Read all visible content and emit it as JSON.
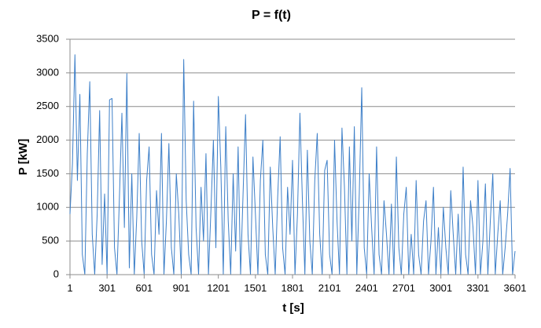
{
  "chart_data": {
    "type": "line",
    "title": "P = f(t)",
    "x_label": "t [s]",
    "y_label": "P [kW]",
    "xlim": [
      1,
      3601
    ],
    "xticks": [
      1,
      301,
      601,
      901,
      1201,
      1501,
      1801,
      2101,
      2401,
      2701,
      3001,
      3301,
      3601
    ],
    "ylim": [
      0,
      3500
    ],
    "yticks": [
      0,
      500,
      1000,
      1500,
      2000,
      2500,
      3000,
      3500
    ],
    "grid": true,
    "x": [
      1,
      21,
      41,
      61,
      81,
      101,
      121,
      141,
      161,
      181,
      201,
      221,
      241,
      261,
      281,
      301,
      321,
      341,
      361,
      381,
      401,
      421,
      441,
      461,
      481,
      501,
      521,
      541,
      561,
      581,
      601,
      621,
      641,
      661,
      681,
      701,
      721,
      741,
      761,
      781,
      801,
      821,
      841,
      861,
      881,
      901,
      921,
      941,
      961,
      981,
      1001,
      1021,
      1041,
      1061,
      1081,
      1101,
      1121,
      1141,
      1161,
      1181,
      1201,
      1221,
      1241,
      1261,
      1281,
      1301,
      1321,
      1341,
      1361,
      1381,
      1401,
      1421,
      1441,
      1461,
      1481,
      1501,
      1521,
      1541,
      1561,
      1581,
      1601,
      1621,
      1641,
      1661,
      1681,
      1701,
      1721,
      1741,
      1761,
      1781,
      1801,
      1821,
      1841,
      1861,
      1881,
      1901,
      1921,
      1941,
      1961,
      1981,
      2001,
      2021,
      2041,
      2061,
      2081,
      2101,
      2121,
      2141,
      2161,
      2181,
      2201,
      2221,
      2241,
      2261,
      2281,
      2301,
      2321,
      2341,
      2361,
      2381,
      2401,
      2421,
      2441,
      2461,
      2481,
      2501,
      2521,
      2541,
      2561,
      2581,
      2601,
      2621,
      2641,
      2661,
      2681,
      2701,
      2721,
      2741,
      2761,
      2781,
      2801,
      2821,
      2841,
      2861,
      2881,
      2901,
      2921,
      2941,
      2961,
      2981,
      3001,
      3021,
      3041,
      3061,
      3081,
      3101,
      3121,
      3141,
      3161,
      3181,
      3201,
      3221,
      3241,
      3261,
      3281,
      3301,
      3321,
      3341,
      3361,
      3381,
      3401,
      3421,
      3441,
      3461,
      3481,
      3501,
      3521,
      3541,
      3561,
      3581,
      3601
    ],
    "series": [
      {
        "color": "#3d7fc8",
        "values": [
          900,
          1650,
          3270,
          1400,
          2680,
          300,
          0,
          1800,
          2870,
          600,
          0,
          900,
          2440,
          150,
          1200,
          0,
          2600,
          2620,
          400,
          0,
          1150,
          2400,
          700,
          2990,
          100,
          1500,
          0,
          850,
          2100,
          500,
          0,
          1400,
          1900,
          300,
          0,
          1250,
          600,
          2100,
          0,
          800,
          1950,
          400,
          0,
          1500,
          900,
          0,
          3200,
          1100,
          300,
          0,
          2580,
          700,
          0,
          1300,
          500,
          1800,
          0,
          950,
          2000,
          400,
          2650,
          1600,
          0,
          2200,
          800,
          0,
          1500,
          350,
          1900,
          0,
          1200,
          2380,
          600,
          0,
          1750,
          900,
          0,
          1400,
          2000,
          300,
          0,
          1600,
          700,
          0,
          1150,
          2050,
          400,
          0,
          1300,
          600,
          1700,
          0,
          900,
          2400,
          1100,
          0,
          1850,
          500,
          0,
          1400,
          2100,
          600,
          0,
          1550,
          1700,
          300,
          0,
          2000,
          800,
          0,
          2180,
          1300,
          0,
          1900,
          500,
          2200,
          0,
          1200,
          2780,
          400,
          0,
          1500,
          700,
          0,
          1900,
          300,
          0,
          1100,
          600,
          0,
          1050,
          0,
          1750,
          400,
          0,
          900,
          1300,
          0,
          600,
          0,
          1400,
          300,
          0,
          800,
          1100,
          0,
          500,
          1300,
          0,
          700,
          0,
          1000,
          400,
          0,
          1250,
          600,
          0,
          900,
          0,
          1600,
          300,
          0,
          1100,
          700,
          0,
          1400,
          0,
          500,
          1350,
          0,
          800,
          1500,
          0,
          600,
          1100,
          0,
          400,
          900,
          1580,
          0,
          350
        ]
      }
    ]
  }
}
